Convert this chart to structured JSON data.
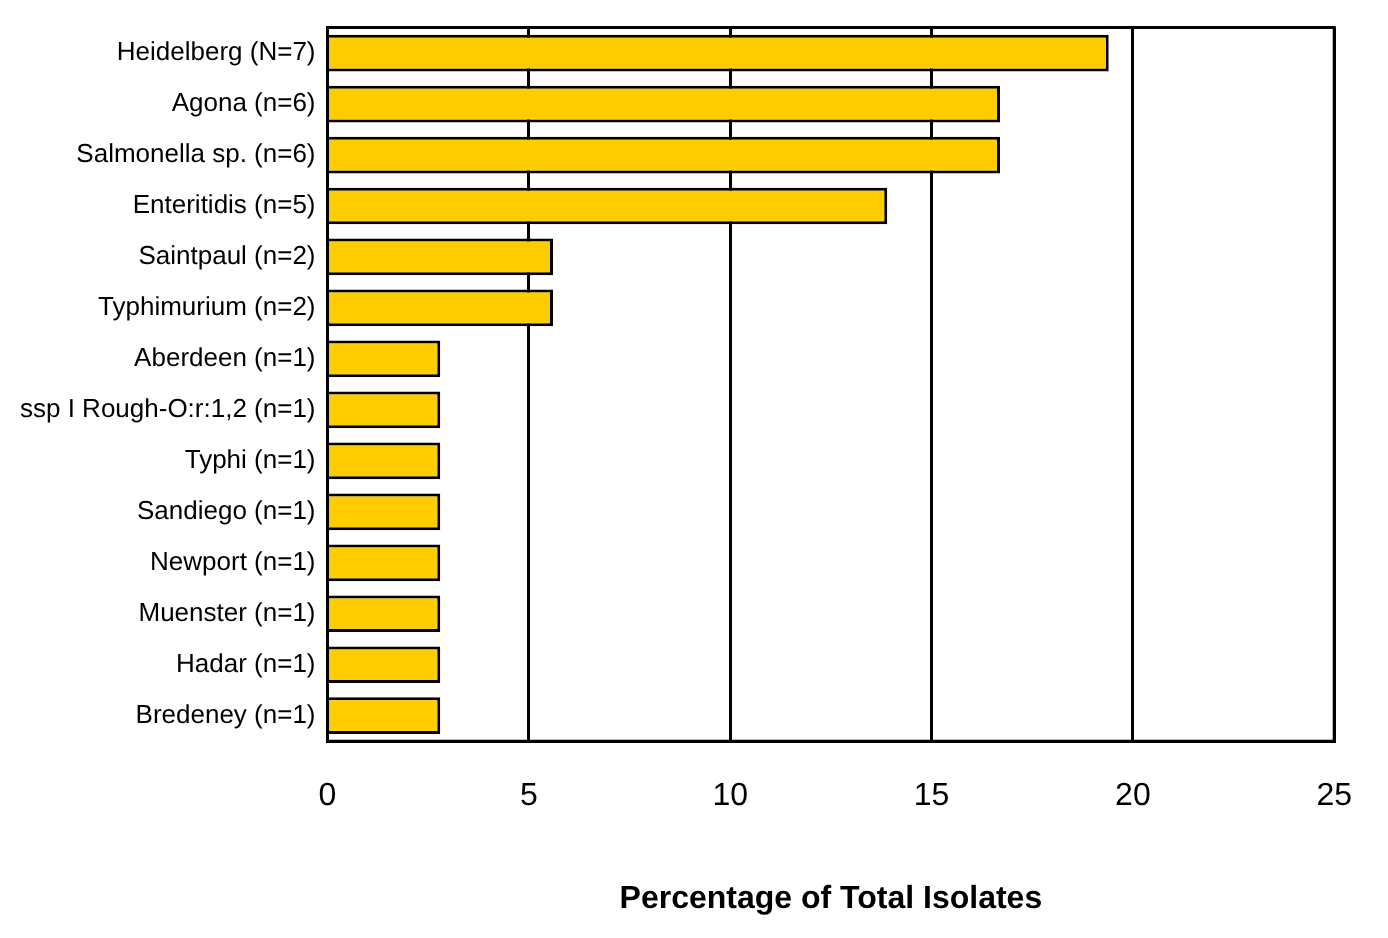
{
  "chart_data": {
    "type": "bar",
    "orientation": "horizontal",
    "xlabel": "Percentage of Total Isolates",
    "categories": [
      "Heidelberg (N=7)",
      "Agona (n=6)",
      "Salmonella sp. (n=6)",
      "Enteritidis (n=5)",
      "Saintpaul (n=2)",
      "Typhimurium (n=2)",
      "Aberdeen (n=1)",
      "ssp I Rough-O:r:1,2 (n=1)",
      "Typhi (n=1)",
      "Sandiego (n=1)",
      "Newport (n=1)",
      "Muenster (n=1)",
      "Hadar (n=1)",
      "Bredeney (n=1)"
    ],
    "values": [
      19.4,
      16.7,
      16.7,
      13.9,
      5.6,
      5.6,
      2.8,
      2.8,
      2.8,
      2.8,
      2.8,
      2.8,
      2.8,
      2.8
    ],
    "color": "#ffcc00",
    "xlim": [
      0,
      25
    ],
    "xticks": [
      0,
      5,
      10,
      15,
      20,
      25
    ],
    "grid": "x",
    "legend": false
  }
}
